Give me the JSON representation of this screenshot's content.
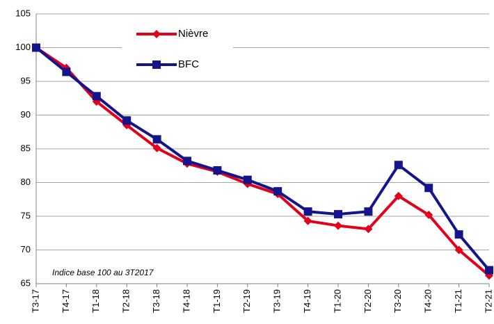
{
  "chart_data": {
    "type": "line",
    "categories": [
      "T3-17",
      "T4-17",
      "T1-18",
      "T2-18",
      "T3-18",
      "T4-18",
      "T1-19",
      "T2-19",
      "T3-19",
      "T4-19",
      "T1-20",
      "T2-20",
      "T3-20",
      "T4-20",
      "T1-21",
      "T2-21"
    ],
    "series": [
      {
        "name": "Nièvre",
        "color": "#e2001a",
        "marker": "diamond",
        "values": [
          100,
          97,
          92,
          88.5,
          85.1,
          82.8,
          81.6,
          79.8,
          78.3,
          74.3,
          73.6,
          73.1,
          78,
          75.2,
          70,
          66.2
        ]
      },
      {
        "name": "BFC",
        "color": "#14148c",
        "marker": "square",
        "values": [
          100,
          96.4,
          92.8,
          89.2,
          86.4,
          83.2,
          81.8,
          80.4,
          78.7,
          75.7,
          75.3,
          75.7,
          82.6,
          79.2,
          72.3,
          67
        ]
      }
    ],
    "ylim": [
      65,
      105
    ],
    "yticks": [
      65,
      70,
      75,
      80,
      85,
      90,
      95,
      100,
      105
    ],
    "grid": true,
    "annotation": "Indice base 100 au 3T2017"
  }
}
